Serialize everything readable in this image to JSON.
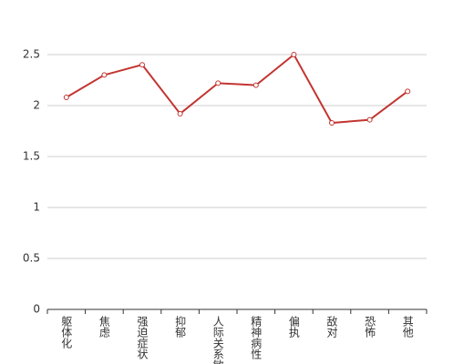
{
  "chart_data": {
    "type": "line",
    "categories": [
      "躯体化",
      "焦虑",
      "强迫症状",
      "抑郁",
      "人际关系敏感",
      "精神病性",
      "偏执",
      "敌对",
      "恐怖",
      "其他"
    ],
    "series": [
      {
        "color": "#c23531",
        "values": [
          2.08,
          2.3,
          2.4,
          1.92,
          2.22,
          2.2,
          2.5,
          1.83,
          1.86,
          2.14
        ]
      }
    ],
    "ylim": [
      0,
      2.5
    ],
    "yticks": [
      0,
      0.5,
      1,
      1.5,
      2,
      2.5
    ],
    "grid": true
  }
}
